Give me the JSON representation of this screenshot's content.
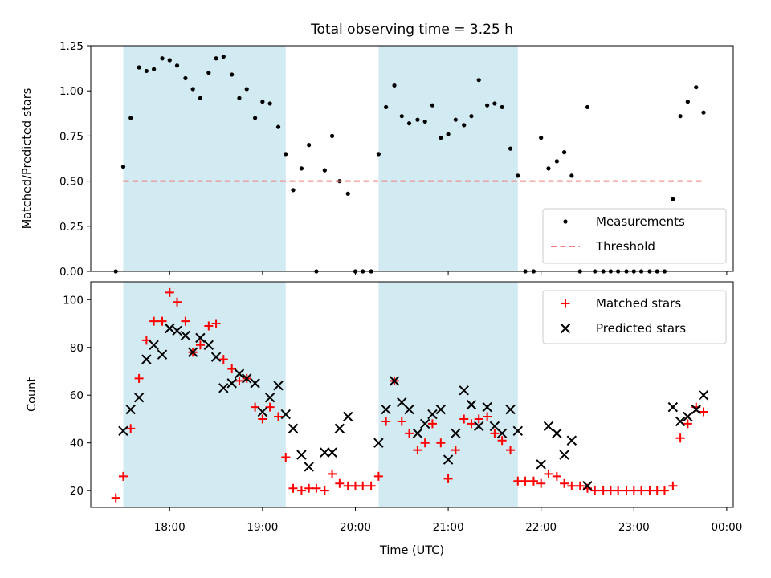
{
  "chart_data": {
    "title": "Total observing time = 3.25 h",
    "xlabel": "Time (UTC)",
    "x_unit": "decimal hours UTC",
    "xlim": [
      17.15,
      24.07
    ],
    "xticks": [
      {
        "value": 18,
        "label": "18:00"
      },
      {
        "value": 19,
        "label": "19:00"
      },
      {
        "value": 20,
        "label": "20:00"
      },
      {
        "value": 21,
        "label": "21:00"
      },
      {
        "value": 22,
        "label": "22:00"
      },
      {
        "value": 23,
        "label": "23:00"
      },
      {
        "value": 24,
        "label": "00:00"
      }
    ],
    "shaded_intervals": [
      [
        17.5,
        19.25
      ],
      [
        20.25,
        21.75
      ]
    ],
    "shade_color": "#add8e6",
    "panels": [
      {
        "type": "scatter",
        "ylabel": "Matched/Predicted stars",
        "ylim": [
          0,
          1.25
        ],
        "yticks": [
          0,
          0.25,
          0.5,
          0.75,
          1.0,
          1.25
        ],
        "ytick_labels": [
          "0.00",
          "0.25",
          "0.50",
          "0.75",
          "1.00",
          "1.25"
        ],
        "legend_position": "lower-right",
        "series": [
          {
            "name": "Measurements",
            "marker": "dot",
            "color": "#000000",
            "points": [
              [
                17.42,
                0.0
              ],
              [
                17.5,
                0.58
              ],
              [
                17.58,
                0.85
              ],
              [
                17.67,
                1.13
              ],
              [
                17.75,
                1.11
              ],
              [
                17.83,
                1.12
              ],
              [
                17.92,
                1.18
              ],
              [
                18.0,
                1.17
              ],
              [
                18.08,
                1.14
              ],
              [
                18.17,
                1.07
              ],
              [
                18.25,
                1.01
              ],
              [
                18.33,
                0.96
              ],
              [
                18.42,
                1.1
              ],
              [
                18.5,
                1.18
              ],
              [
                18.58,
                1.19
              ],
              [
                18.67,
                1.09
              ],
              [
                18.75,
                0.96
              ],
              [
                18.83,
                1.01
              ],
              [
                18.92,
                0.85
              ],
              [
                19.0,
                0.94
              ],
              [
                19.08,
                0.93
              ],
              [
                19.17,
                0.8
              ],
              [
                19.25,
                0.65
              ],
              [
                19.33,
                0.45
              ],
              [
                19.42,
                0.57
              ],
              [
                19.5,
                0.7
              ],
              [
                19.58,
                0.0
              ],
              [
                19.67,
                0.56
              ],
              [
                19.75,
                0.75
              ],
              [
                19.83,
                0.5
              ],
              [
                19.92,
                0.43
              ],
              [
                20.0,
                0.0
              ],
              [
                20.08,
                0.0
              ],
              [
                20.17,
                0.0
              ],
              [
                20.25,
                0.65
              ],
              [
                20.33,
                0.91
              ],
              [
                20.42,
                1.03
              ],
              [
                20.5,
                0.86
              ],
              [
                20.58,
                0.82
              ],
              [
                20.67,
                0.84
              ],
              [
                20.75,
                0.83
              ],
              [
                20.83,
                0.92
              ],
              [
                20.92,
                0.74
              ],
              [
                21.0,
                0.76
              ],
              [
                21.08,
                0.84
              ],
              [
                21.17,
                0.81
              ],
              [
                21.25,
                0.86
              ],
              [
                21.33,
                1.06
              ],
              [
                21.42,
                0.92
              ],
              [
                21.5,
                0.93
              ],
              [
                21.58,
                0.91
              ],
              [
                21.67,
                0.68
              ],
              [
                21.75,
                0.53
              ],
              [
                21.83,
                0.0
              ],
              [
                21.92,
                0.0
              ],
              [
                22.0,
                0.74
              ],
              [
                22.08,
                0.57
              ],
              [
                22.17,
                0.61
              ],
              [
                22.25,
                0.66
              ],
              [
                22.33,
                0.53
              ],
              [
                22.42,
                0.0
              ],
              [
                22.5,
                0.91
              ],
              [
                22.58,
                0.0
              ],
              [
                22.67,
                0.0
              ],
              [
                22.75,
                0.0
              ],
              [
                22.83,
                0.0
              ],
              [
                22.92,
                0.0
              ],
              [
                23.0,
                0.0
              ],
              [
                23.08,
                0.0
              ],
              [
                23.17,
                0.0
              ],
              [
                23.25,
                0.0
              ],
              [
                23.33,
                0.0
              ],
              [
                23.42,
                0.4
              ],
              [
                23.5,
                0.86
              ],
              [
                23.58,
                0.94
              ],
              [
                23.67,
                1.02
              ],
              [
                23.75,
                0.88
              ]
            ]
          },
          {
            "name": "Threshold",
            "marker": "dashed-line",
            "color": "#f08080",
            "points": [
              [
                17.5,
                0.5
              ],
              [
                23.75,
                0.5
              ]
            ]
          }
        ]
      },
      {
        "type": "scatter",
        "ylabel": "Count",
        "ylim": [
          13,
          107.5
        ],
        "yticks": [
          20,
          40,
          60,
          80,
          100
        ],
        "ytick_labels": [
          "20",
          "40",
          "60",
          "80",
          "100"
        ],
        "legend_position": "upper-right",
        "series": [
          {
            "name": "Matched stars",
            "marker": "plus",
            "color": "#ff0000",
            "points": [
              [
                17.42,
                17
              ],
              [
                17.5,
                26
              ],
              [
                17.58,
                46
              ],
              [
                17.67,
                67
              ],
              [
                17.75,
                83
              ],
              [
                17.83,
                91
              ],
              [
                17.92,
                91
              ],
              [
                18.0,
                103
              ],
              [
                18.08,
                99
              ],
              [
                18.17,
                91
              ],
              [
                18.25,
                78
              ],
              [
                18.33,
                81
              ],
              [
                18.42,
                89
              ],
              [
                18.5,
                90
              ],
              [
                18.58,
                75
              ],
              [
                18.67,
                71
              ],
              [
                18.75,
                66
              ],
              [
                18.83,
                67
              ],
              [
                18.92,
                55
              ],
              [
                19.0,
                50
              ],
              [
                19.08,
                55
              ],
              [
                19.17,
                51
              ],
              [
                19.25,
                34
              ],
              [
                19.33,
                21
              ],
              [
                19.42,
                20
              ],
              [
                19.5,
                21
              ],
              [
                19.58,
                21
              ],
              [
                19.67,
                20
              ],
              [
                19.75,
                27
              ],
              [
                19.83,
                23
              ],
              [
                19.92,
                22
              ],
              [
                20.0,
                22
              ],
              [
                20.08,
                22
              ],
              [
                20.17,
                22
              ],
              [
                20.25,
                26
              ],
              [
                20.33,
                49
              ],
              [
                20.42,
                66
              ],
              [
                20.5,
                49
              ],
              [
                20.58,
                44
              ],
              [
                20.67,
                37
              ],
              [
                20.75,
                40
              ],
              [
                20.83,
                48
              ],
              [
                20.92,
                40
              ],
              [
                21.0,
                25
              ],
              [
                21.08,
                37
              ],
              [
                21.17,
                50
              ],
              [
                21.25,
                48
              ],
              [
                21.33,
                50
              ],
              [
                21.42,
                51
              ],
              [
                21.5,
                44
              ],
              [
                21.58,
                41
              ],
              [
                21.67,
                37
              ],
              [
                21.75,
                24
              ],
              [
                21.83,
                24
              ],
              [
                21.92,
                24
              ],
              [
                22.0,
                23
              ],
              [
                22.08,
                27
              ],
              [
                22.17,
                26
              ],
              [
                22.25,
                23
              ],
              [
                22.33,
                22
              ],
              [
                22.42,
                22
              ],
              [
                22.5,
                21
              ],
              [
                22.58,
                20
              ],
              [
                22.67,
                20
              ],
              [
                22.75,
                20
              ],
              [
                22.83,
                20
              ],
              [
                22.92,
                20
              ],
              [
                23.0,
                20
              ],
              [
                23.08,
                20
              ],
              [
                23.17,
                20
              ],
              [
                23.25,
                20
              ],
              [
                23.33,
                20
              ],
              [
                23.42,
                22
              ],
              [
                23.5,
                42
              ],
              [
                23.58,
                48
              ],
              [
                23.67,
                55
              ],
              [
                23.75,
                53
              ]
            ]
          },
          {
            "name": "Predicted stars",
            "marker": "x",
            "color": "#000000",
            "points": [
              [
                17.5,
                45
              ],
              [
                17.58,
                54
              ],
              [
                17.67,
                59
              ],
              [
                17.75,
                75
              ],
              [
                17.83,
                81
              ],
              [
                17.92,
                77
              ],
              [
                18.0,
                88
              ],
              [
                18.08,
                87
              ],
              [
                18.17,
                85
              ],
              [
                18.25,
                78
              ],
              [
                18.33,
                84
              ],
              [
                18.42,
                81
              ],
              [
                18.5,
                76
              ],
              [
                18.58,
                63
              ],
              [
                18.67,
                65
              ],
              [
                18.75,
                69
              ],
              [
                18.83,
                67
              ],
              [
                18.92,
                65
              ],
              [
                19.0,
                53
              ],
              [
                19.08,
                59
              ],
              [
                19.17,
                64
              ],
              [
                19.25,
                52
              ],
              [
                19.33,
                46
              ],
              [
                19.42,
                35
              ],
              [
                19.5,
                30
              ],
              [
                19.67,
                36
              ],
              [
                19.75,
                36
              ],
              [
                19.83,
                46
              ],
              [
                19.92,
                51
              ],
              [
                20.25,
                40
              ],
              [
                20.33,
                54
              ],
              [
                20.42,
                66
              ],
              [
                20.5,
                57
              ],
              [
                20.58,
                54
              ],
              [
                20.67,
                44
              ],
              [
                20.75,
                48
              ],
              [
                20.83,
                52
              ],
              [
                20.92,
                54
              ],
              [
                21.0,
                33
              ],
              [
                21.08,
                44
              ],
              [
                21.17,
                62
              ],
              [
                21.25,
                56
              ],
              [
                21.33,
                47
              ],
              [
                21.42,
                55
              ],
              [
                21.5,
                47
              ],
              [
                21.58,
                44
              ],
              [
                21.67,
                54
              ],
              [
                21.75,
                45
              ],
              [
                22.0,
                31
              ],
              [
                22.08,
                47
              ],
              [
                22.17,
                44
              ],
              [
                22.25,
                35
              ],
              [
                22.33,
                41
              ],
              [
                22.5,
                22
              ],
              [
                23.42,
                55
              ],
              [
                23.5,
                49
              ],
              [
                23.58,
                51
              ],
              [
                23.67,
                54
              ],
              [
                23.75,
                60
              ]
            ]
          }
        ]
      }
    ]
  }
}
